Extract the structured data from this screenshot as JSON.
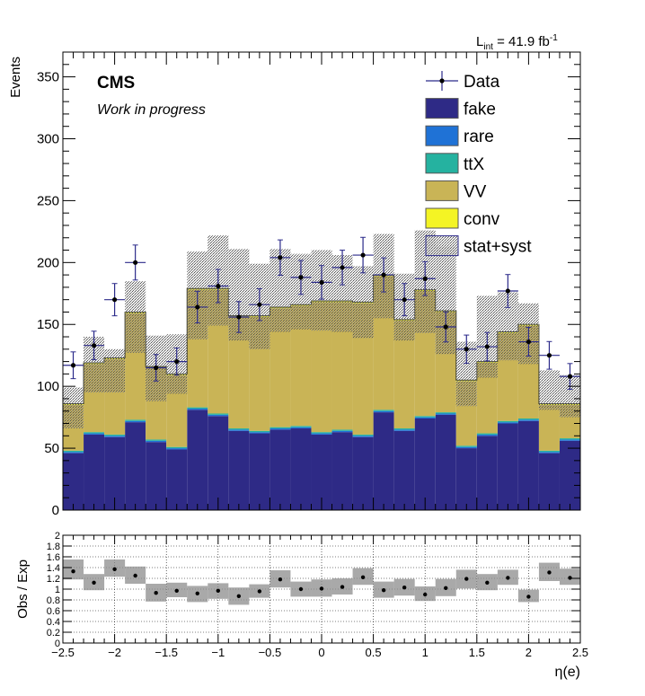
{
  "lumi_label": "L",
  "lumi_sub": "int",
  "lumi_value": " = 41.9 fb",
  "lumi_sup": "-1",
  "experiment": "CMS",
  "status": "Work in progress",
  "chart_data": [
    {
      "type": "bar",
      "stacked": true,
      "ylabel": "Events",
      "xlim": [
        -2.5,
        2.5
      ],
      "ylim": [
        0,
        370
      ],
      "x_ticks": [
        "−2.5",
        "−2",
        "−1.5",
        "−1",
        "−0.5",
        "0",
        "0.5",
        "1",
        "1.5",
        "2",
        "2.5"
      ],
      "y_ticks": [
        "0",
        "50",
        "100",
        "150",
        "200",
        "250",
        "300",
        "350"
      ],
      "bin_edges": [
        -2.5,
        -2.3,
        -2.1,
        -1.9,
        -1.7,
        -1.5,
        -1.3,
        -1.1,
        -0.9,
        -0.7,
        -0.5,
        -0.3,
        -0.1,
        0.1,
        0.3,
        0.5,
        0.7,
        0.9,
        1.1,
        1.3,
        1.5,
        1.7,
        1.9,
        2.1,
        2.3,
        2.5
      ],
      "series": [
        {
          "name": "fake",
          "color": "#2e2a86",
          "values": [
            46,
            61,
            59,
            71,
            55,
            49,
            81,
            76,
            64,
            62,
            65,
            66,
            61,
            63,
            59,
            79,
            64,
            74,
            77,
            50,
            60,
            70,
            72,
            46,
            56
          ]
        },
        {
          "name": "rare",
          "color": "#1f72d6",
          "values": [
            1,
            1,
            1,
            1,
            1,
            1,
            1,
            1,
            1,
            1,
            1,
            1,
            1,
            1,
            1,
            1,
            1,
            1,
            1,
            1,
            1,
            1,
            1,
            1,
            1
          ]
        },
        {
          "name": "ttX",
          "color": "#25b2a0",
          "values": [
            1,
            1,
            1,
            1,
            1,
            1,
            1,
            1,
            1,
            1,
            1,
            1,
            1,
            1,
            1,
            1,
            1,
            1,
            1,
            1,
            1,
            1,
            1,
            1,
            1
          ]
        },
        {
          "name": "VV",
          "color": "#c9b456",
          "values": [
            37,
            55,
            61,
            86,
            58,
            58,
            95,
            100,
            90,
            92,
            96,
            97,
            105,
            103,
            106,
            108,
            87,
            101,
            81,
            52,
            57,
            71,
            75,
            37,
            27
          ]
        },
        {
          "name": "conv",
          "color": "#f4f424",
          "values": [
            1,
            1,
            1,
            1,
            1,
            1,
            1,
            1,
            1,
            1,
            1,
            1,
            1,
            1,
            1,
            1,
            1,
            1,
            1,
            1,
            1,
            1,
            1,
            1,
            1
          ]
        }
      ],
      "unc": {
        "name": "stat+syst",
        "down": [
          66,
          95,
          95,
          127,
          88,
          94,
          138,
          149,
          137,
          130,
          144,
          146,
          145,
          144,
          139,
          155,
          137,
          143,
          126,
          84,
          107,
          121,
          118,
          81,
          75
        ],
        "up": [
          99,
          140,
          130,
          185,
          141,
          142,
          209,
          222,
          211,
          199,
          211,
          207,
          210,
          206,
          197,
          223,
          191,
          226,
          213,
          136,
          173,
          176,
          167,
          113,
          109
        ]
      },
      "data": {
        "name": "Data",
        "x": [
          -2.4,
          -2.2,
          -2.0,
          -1.8,
          -1.6,
          -1.4,
          -1.2,
          -1.0,
          -0.8,
          -0.6,
          -0.4,
          -0.2,
          0.0,
          0.2,
          0.4,
          0.6,
          0.8,
          1.0,
          1.2,
          1.4,
          1.6,
          1.8,
          2.0,
          2.2,
          2.4
        ],
        "y": [
          117,
          133,
          170,
          200,
          115,
          120,
          164,
          181,
          156,
          166,
          204,
          188,
          184,
          196,
          206,
          190,
          170,
          187,
          148,
          130,
          132,
          177,
          136,
          125,
          108
        ]
      },
      "legend_position": "top-right"
    },
    {
      "type": "scatter",
      "ylabel": "Obs / Exp",
      "xlabel": "η(e)",
      "xlim": [
        -2.5,
        2.5
      ],
      "ylim": [
        0,
        2
      ],
      "x_ticks": [
        "−2.5",
        "−2",
        "−1.5",
        "−1",
        "−0.5",
        "0",
        "0.5",
        "1",
        "1.5",
        "2",
        "2.5"
      ],
      "y_ticks": [
        "0",
        "0.2",
        "0.4",
        "0.6",
        "0.8",
        "1",
        "1.2",
        "1.4",
        "1.6",
        "1.8",
        "2"
      ],
      "ratio_x": [
        -2.4,
        -2.2,
        -2.0,
        -1.8,
        -1.6,
        -1.4,
        -1.2,
        -1.0,
        -0.8,
        -0.6,
        -0.4,
        -0.2,
        0.0,
        0.2,
        0.4,
        0.6,
        0.8,
        1.0,
        1.2,
        1.4,
        1.6,
        1.8,
        2.0,
        2.2,
        2.4
      ],
      "ratio": [
        1.33,
        1.12,
        1.37,
        1.25,
        0.93,
        0.97,
        0.92,
        0.97,
        0.87,
        0.96,
        1.18,
        1.0,
        1.01,
        1.04,
        1.22,
        0.98,
        1.03,
        0.9,
        1.02,
        1.19,
        1.12,
        1.21,
        0.86,
        1.31,
        1.21
      ],
      "band_down": [
        1.18,
        0.98,
        1.23,
        1.1,
        0.77,
        0.85,
        0.76,
        0.82,
        0.71,
        0.84,
        1.03,
        0.86,
        0.86,
        0.9,
        1.08,
        0.84,
        0.88,
        0.78,
        0.87,
        1.01,
        0.98,
        1.08,
        0.76,
        1.15,
        1.08
      ],
      "band_up": [
        1.55,
        1.28,
        1.55,
        1.42,
        1.1,
        1.12,
        1.06,
        1.11,
        1.03,
        1.09,
        1.35,
        1.14,
        1.18,
        1.2,
        1.39,
        1.14,
        1.19,
        1.05,
        1.19,
        1.36,
        1.28,
        1.36,
        0.99,
        1.49,
        1.38
      ],
      "grid": true
    }
  ]
}
